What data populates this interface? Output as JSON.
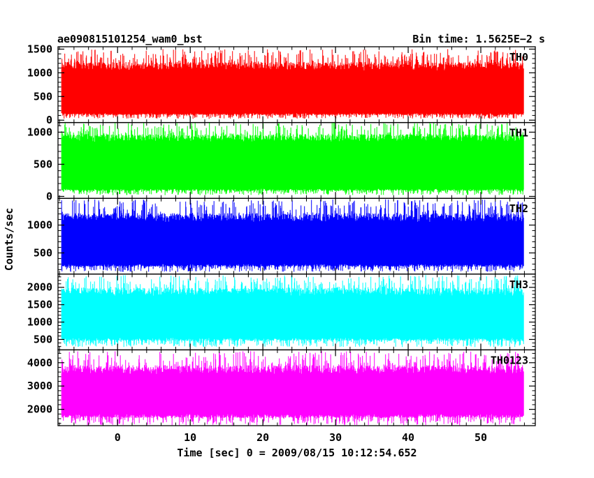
{
  "header": {
    "left_title": "ae090815101254_wam0_bst",
    "right_title": "Bin time: 1.5625E−2 s"
  },
  "chart_data": {
    "type": "line",
    "title": "ae090815101254_wam0_bst",
    "bin_time_label": "Bin time: 1.5625E−2 s",
    "xlabel": "Time [sec] 0 = 2009/08/15 10:12:54.652",
    "ylabel": "Counts/sec",
    "xlim": [
      -8.2,
      57.5
    ],
    "data_x_range": [
      -7.7,
      55.9
    ],
    "x_ticks": [
      0,
      10,
      20,
      30,
      40,
      50
    ],
    "x_tick_labels": [
      "0",
      "10",
      "20",
      "30",
      "40",
      "50"
    ],
    "x_minor_step": 2,
    "grid": false,
    "panels": [
      {
        "name": "TH0",
        "color": "#ff0000",
        "ylim": [
          -50,
          1550
        ],
        "y_ticks": [
          0,
          500,
          1000,
          1500
        ],
        "y_tick_labels": [
          "0",
          "500",
          "1000",
          "1500"
        ],
        "y_minor_step": 100,
        "band_low": 150,
        "band_high": 1050,
        "spike_min": 30,
        "spike_max": 1500
      },
      {
        "name": "TH1",
        "color": "#00ff00",
        "ylim": [
          -30,
          1150
        ],
        "y_ticks": [
          0,
          500,
          1000
        ],
        "y_tick_labels": [
          "0",
          "500",
          "1000"
        ],
        "y_minor_step": 100,
        "band_low": 120,
        "band_high": 850,
        "spike_min": 20,
        "spike_max": 1150
      },
      {
        "name": "TH2",
        "color": "#0000ff",
        "ylim": [
          120,
          1480
        ],
        "y_ticks": [
          500,
          1000
        ],
        "y_tick_labels": [
          "500",
          "1000"
        ],
        "y_minor_step": 100,
        "band_low": 300,
        "band_high": 1050,
        "spike_min": 160,
        "spike_max": 1460
      },
      {
        "name": "TH3",
        "color": "#00ffff",
        "ylim": [
          200,
          2380
        ],
        "y_ticks": [
          500,
          1000,
          1500,
          2000
        ],
        "y_tick_labels": [
          "500",
          "1000",
          "1500",
          "2000"
        ],
        "y_minor_step": 100,
        "band_low": 550,
        "band_high": 1750,
        "spike_min": 280,
        "spike_max": 2350
      },
      {
        "name": "TH0123",
        "color": "#ff00ff",
        "ylim": [
          1300,
          4550
        ],
        "y_ticks": [
          2000,
          3000,
          4000
        ],
        "y_tick_labels": [
          "2000",
          "3000",
          "4000"
        ],
        "y_minor_step": 200,
        "band_low": 1800,
        "band_high": 3500,
        "spike_min": 1320,
        "spike_max": 4500
      }
    ]
  }
}
